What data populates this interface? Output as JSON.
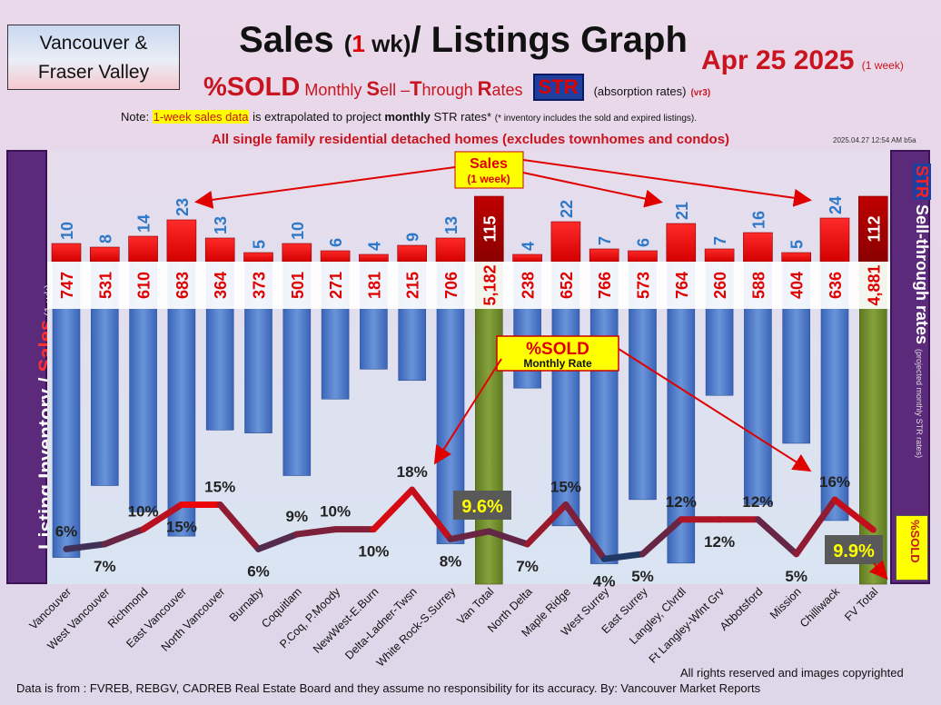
{
  "region_box": {
    "line1": "Vancouver &",
    "line2": "Fraser Valley"
  },
  "title": {
    "part1": "Sales",
    "part2": "(",
    "part3": "1",
    "part4": " wk)",
    "part5": "/ Listings Graph"
  },
  "date": {
    "main": "Apr 25  2025",
    "sub": "(1 week)"
  },
  "subtitle": {
    "sold": "%SOLD",
    "mst1": " Monthly ",
    "mst_s": "S",
    "mst2": "ell –",
    "mst_t": "T",
    "mst3": "hrough ",
    "mst_r": "R",
    "mst4": "ates",
    "str": "STR",
    "absorption": "(absorption rates)",
    "ver": "(vr3)"
  },
  "note": {
    "prefix": "Note: ",
    "highlight": "1-week sales data",
    "mid": " is extrapolated to project ",
    "bold": "monthly",
    "suffix": " STR rates* ",
    "tiny": "(* inventory includes the sold and expired listings)."
  },
  "scope": "All single family residential detached homes (excludes townhomes and condos)",
  "timestamp": "2025.04.27 12:54 AM b5a",
  "left_label": {
    "a": "Listing Inventory / ",
    "b": "Sales",
    "c": " (1 wk)"
  },
  "right_label": {
    "a": "STR",
    "b": " Sell-through rates ",
    "c": "(projected monthly STR rates)"
  },
  "right_sold_label": "%SOLD",
  "annotations": {
    "sales_line1": "Sales",
    "sales_line2": "(1 week)",
    "sold_line1": "%SOLD",
    "sold_line2": "Monthly Rate",
    "van_total_pct": "9.6%",
    "fv_total_pct": "9.9%"
  },
  "footer": "Data is from : FVREB, REBGV, CADREB Real Estate Board and they assume no responsibility for its accuracy. By: Vancouver Market Reports",
  "rights": "All rights reserved and  images copyrighted",
  "colors": {
    "listing_bar": "#4472c4",
    "total_bar": "#70882e",
    "sales_bar": "#ff0000",
    "total_sales_bar": "#c00000",
    "line_high": "#ff0000",
    "line_low": "#1f3864"
  },
  "chart_data": {
    "type": "bar",
    "categories": [
      "Vancouver",
      "West Vancouver",
      "Richmond",
      "East Vancouver",
      "North Vancouver",
      "Burnaby",
      "Coquitlam",
      "P.Coq, P.Moody",
      "NewWest-E.Burn",
      "Delta-Ladner-Twsn",
      "White Rock-S.Surrey",
      "Van Total",
      "North Delta",
      "Maple Ridge",
      "West Surrey",
      "East Surrey",
      "Langley, Clvrdl",
      "Ft Langley-Wlnt Grv",
      "Abbotsford",
      "Mission",
      "Chilliwack",
      "FV Total"
    ],
    "series": [
      {
        "name": "Listing Inventory",
        "values": [
          747,
          531,
          610,
          683,
          364,
          373,
          501,
          271,
          181,
          215,
          706,
          5182,
          238,
          652,
          766,
          573,
          764,
          260,
          588,
          404,
          636,
          4881
        ]
      },
      {
        "name": "Sales",
        "values": [
          10,
          8,
          14,
          23,
          13,
          5,
          10,
          6,
          4,
          9,
          13,
          115,
          4,
          22,
          7,
          6,
          21,
          7,
          16,
          5,
          24,
          112
        ]
      },
      {
        "name": "%SOLD Monthly Rate",
        "values": [
          6,
          7,
          10,
          15,
          15,
          6,
          9,
          10,
          10,
          18,
          8,
          9.6,
          7,
          15,
          4,
          5,
          12,
          12,
          12,
          5,
          16,
          9.9
        ]
      }
    ],
    "listing_labels": [
      "747",
      "531",
      "610",
      "683",
      "364",
      "373",
      "501",
      "271",
      "181",
      "215",
      "706",
      "5,182",
      "238",
      "652",
      "766",
      "573",
      "764",
      "260",
      "588",
      "404",
      "636",
      "4,881"
    ],
    "sales_labels": [
      "10",
      "8",
      "14",
      "23",
      "13",
      "5",
      "10",
      "6",
      "4",
      "9",
      "13",
      "115",
      "4",
      "22",
      "7",
      "6",
      "21",
      "7",
      "16",
      "5",
      "24",
      "112"
    ],
    "pct_labels": [
      "6%",
      "7%",
      "10%",
      "15%",
      "15%",
      "6%",
      "9%",
      "10%",
      "10%",
      "18%",
      "8%",
      "",
      "7%",
      "15%",
      "4%",
      "5%",
      "12%",
      "12%",
      "12%",
      "5%",
      "16%",
      ""
    ],
    "totals": [
      false,
      false,
      false,
      false,
      false,
      false,
      false,
      false,
      false,
      false,
      false,
      true,
      false,
      false,
      false,
      false,
      false,
      false,
      false,
      false,
      false,
      true
    ],
    "listing_ylim": [
      0,
      800
    ],
    "sales_ylim": [
      0,
      30
    ],
    "pct_ylim": [
      0,
      20
    ]
  }
}
